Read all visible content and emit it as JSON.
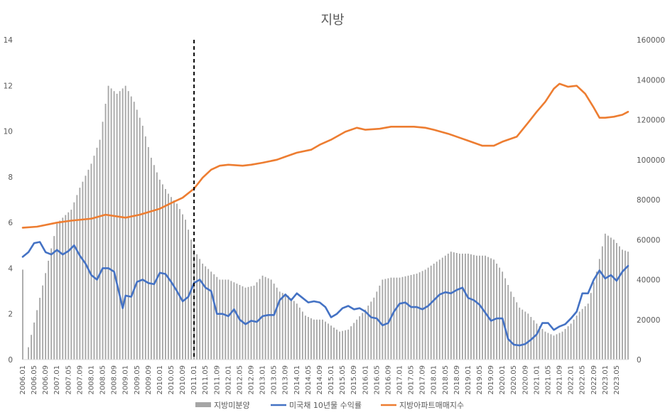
{
  "chart_data": {
    "type": "bar+line",
    "title": "지방",
    "y_left": {
      "range": [
        0,
        14
      ],
      "ticks": [
        0,
        2,
        4,
        6,
        8,
        10,
        12,
        14
      ]
    },
    "y_right": {
      "range": [
        0,
        160000
      ],
      "ticks": [
        0,
        20000,
        40000,
        60000,
        80000,
        100000,
        120000,
        140000,
        160000
      ]
    },
    "x_tick_labels": [
      "2006.01",
      "2006.05",
      "2006.09",
      "2007.01",
      "2007.05",
      "2007.09",
      "2008.01",
      "2008.05",
      "2008.09",
      "2009.01",
      "2009.05",
      "2009.09",
      "2010.01",
      "2010.05",
      "2010.09",
      "2011.01",
      "2011.05",
      "2011.09",
      "2012.01",
      "2012.05",
      "2012.09",
      "2013.01",
      "2013.05",
      "2013.09",
      "2014.01",
      "2014.05",
      "2014.09",
      "2015.01",
      "2015.05",
      "2015.09",
      "2016.01",
      "2016.05",
      "2016.09",
      "2017.01",
      "2017.05",
      "2017.09",
      "2018.01",
      "2018.05",
      "2018.09",
      "2019.01",
      "2019.05",
      "2019.09",
      "2020.01",
      "2020.05",
      "2020.09",
      "2021.01",
      "2021.05",
      "2021.09",
      "2022.01",
      "2022.05",
      "2022.09",
      "2023.01",
      "2023.05"
    ],
    "marker_line": {
      "at": "2011.01",
      "style": "dashed"
    },
    "x_start": "2006.01",
    "x_end": "2023.09",
    "series": [
      {
        "name": "지방미분양",
        "kind": "bar",
        "axis": "right",
        "color": "#a5a5a5",
        "points": [
          [
            "2006.01",
            45000
          ],
          [
            "2006.02",
            0
          ],
          [
            "2007.01",
            68000
          ],
          [
            "2007.03",
            71000
          ],
          [
            "2007.06",
            75000
          ],
          [
            "2007.09",
            86000
          ],
          [
            "2008.01",
            98000
          ],
          [
            "2008.04",
            110000
          ],
          [
            "2008.07",
            137000
          ],
          [
            "2008.10",
            133000
          ],
          [
            "2009.01",
            137000
          ],
          [
            "2009.04",
            129000
          ],
          [
            "2009.07",
            117000
          ],
          [
            "2009.10",
            101000
          ],
          [
            "2010.01",
            90000
          ],
          [
            "2010.04",
            83000
          ],
          [
            "2010.07",
            78000
          ],
          [
            "2010.10",
            70000
          ],
          [
            "2011.01",
            55000
          ],
          [
            "2011.04",
            48000
          ],
          [
            "2011.07",
            44000
          ],
          [
            "2011.10",
            40000
          ],
          [
            "2012.01",
            40000
          ],
          [
            "2012.04",
            38000
          ],
          [
            "2012.07",
            36000
          ],
          [
            "2012.10",
            37000
          ],
          [
            "2013.01",
            42000
          ],
          [
            "2013.04",
            40000
          ],
          [
            "2013.07",
            34000
          ],
          [
            "2013.10",
            32000
          ],
          [
            "2014.01",
            28000
          ],
          [
            "2014.04",
            22000
          ],
          [
            "2014.07",
            20000
          ],
          [
            "2014.10",
            20000
          ],
          [
            "2015.01",
            17000
          ],
          [
            "2015.04",
            14000
          ],
          [
            "2015.07",
            15000
          ],
          [
            "2015.10",
            20000
          ],
          [
            "2016.01",
            25000
          ],
          [
            "2016.04",
            31000
          ],
          [
            "2016.07",
            40000
          ],
          [
            "2016.10",
            41000
          ],
          [
            "2017.01",
            41000
          ],
          [
            "2017.04",
            42000
          ],
          [
            "2017.07",
            43000
          ],
          [
            "2017.10",
            45000
          ],
          [
            "2018.01",
            48000
          ],
          [
            "2018.04",
            51000
          ],
          [
            "2018.07",
            54000
          ],
          [
            "2018.10",
            53000
          ],
          [
            "2019.01",
            53000
          ],
          [
            "2019.04",
            52000
          ],
          [
            "2019.07",
            52000
          ],
          [
            "2019.10",
            50000
          ],
          [
            "2020.01",
            44000
          ],
          [
            "2020.04",
            34000
          ],
          [
            "2020.07",
            26000
          ],
          [
            "2020.10",
            23000
          ],
          [
            "2021.01",
            18000
          ],
          [
            "2021.04",
            14000
          ],
          [
            "2021.07",
            12000
          ],
          [
            "2021.10",
            14000
          ],
          [
            "2022.01",
            18000
          ],
          [
            "2022.04",
            24000
          ],
          [
            "2022.07",
            28000
          ],
          [
            "2022.10",
            44000
          ],
          [
            "2023.01",
            63000
          ],
          [
            "2023.04",
            60000
          ],
          [
            "2023.07",
            55000
          ],
          [
            "2023.09",
            54000
          ]
        ]
      },
      {
        "name": "미국채 10년물 수익률",
        "kind": "line",
        "axis": "left",
        "color": "#4472c4",
        "points": [
          [
            "2006.01",
            4.5
          ],
          [
            "2006.03",
            4.7
          ],
          [
            "2006.05",
            5.1
          ],
          [
            "2006.07",
            5.15
          ],
          [
            "2006.09",
            4.7
          ],
          [
            "2006.11",
            4.6
          ],
          [
            "2007.01",
            4.8
          ],
          [
            "2007.03",
            4.6
          ],
          [
            "2007.05",
            4.75
          ],
          [
            "2007.07",
            5.0
          ],
          [
            "2007.09",
            4.55
          ],
          [
            "2007.11",
            4.2
          ],
          [
            "2008.01",
            3.7
          ],
          [
            "2008.03",
            3.5
          ],
          [
            "2008.05",
            4.0
          ],
          [
            "2008.07",
            4.0
          ],
          [
            "2008.09",
            3.85
          ],
          [
            "2008.11",
            2.8
          ],
          [
            "2008.12",
            2.25
          ],
          [
            "2009.01",
            2.8
          ],
          [
            "2009.03",
            2.75
          ],
          [
            "2009.05",
            3.4
          ],
          [
            "2009.07",
            3.5
          ],
          [
            "2009.09",
            3.35
          ],
          [
            "2009.11",
            3.3
          ],
          [
            "2010.01",
            3.8
          ],
          [
            "2010.03",
            3.75
          ],
          [
            "2010.05",
            3.4
          ],
          [
            "2010.07",
            3.0
          ],
          [
            "2010.09",
            2.55
          ],
          [
            "2010.11",
            2.75
          ],
          [
            "2011.01",
            3.35
          ],
          [
            "2011.03",
            3.5
          ],
          [
            "2011.05",
            3.15
          ],
          [
            "2011.07",
            3.0
          ],
          [
            "2011.09",
            2.0
          ],
          [
            "2011.11",
            2.0
          ],
          [
            "2012.01",
            1.9
          ],
          [
            "2012.03",
            2.2
          ],
          [
            "2012.05",
            1.75
          ],
          [
            "2012.07",
            1.55
          ],
          [
            "2012.09",
            1.7
          ],
          [
            "2012.11",
            1.65
          ],
          [
            "2013.01",
            1.9
          ],
          [
            "2013.03",
            1.95
          ],
          [
            "2013.05",
            1.95
          ],
          [
            "2013.07",
            2.6
          ],
          [
            "2013.09",
            2.85
          ],
          [
            "2013.11",
            2.6
          ],
          [
            "2014.01",
            2.9
          ],
          [
            "2014.03",
            2.7
          ],
          [
            "2014.05",
            2.5
          ],
          [
            "2014.07",
            2.55
          ],
          [
            "2014.09",
            2.5
          ],
          [
            "2014.11",
            2.3
          ],
          [
            "2015.01",
            1.85
          ],
          [
            "2015.03",
            2.0
          ],
          [
            "2015.05",
            2.25
          ],
          [
            "2015.07",
            2.35
          ],
          [
            "2015.09",
            2.2
          ],
          [
            "2015.11",
            2.25
          ],
          [
            "2016.01",
            2.1
          ],
          [
            "2016.03",
            1.85
          ],
          [
            "2016.05",
            1.8
          ],
          [
            "2016.07",
            1.5
          ],
          [
            "2016.09",
            1.6
          ],
          [
            "2016.11",
            2.1
          ],
          [
            "2017.01",
            2.45
          ],
          [
            "2017.03",
            2.5
          ],
          [
            "2017.05",
            2.3
          ],
          [
            "2017.07",
            2.3
          ],
          [
            "2017.09",
            2.2
          ],
          [
            "2017.11",
            2.35
          ],
          [
            "2018.01",
            2.6
          ],
          [
            "2018.03",
            2.85
          ],
          [
            "2018.05",
            2.95
          ],
          [
            "2018.07",
            2.9
          ],
          [
            "2018.09",
            3.05
          ],
          [
            "2018.11",
            3.15
          ],
          [
            "2019.01",
            2.7
          ],
          [
            "2019.03",
            2.6
          ],
          [
            "2019.05",
            2.4
          ],
          [
            "2019.07",
            2.05
          ],
          [
            "2019.09",
            1.7
          ],
          [
            "2019.11",
            1.8
          ],
          [
            "2020.01",
            1.8
          ],
          [
            "2020.03",
            0.9
          ],
          [
            "2020.05",
            0.65
          ],
          [
            "2020.07",
            0.62
          ],
          [
            "2020.09",
            0.68
          ],
          [
            "2020.11",
            0.87
          ],
          [
            "2021.01",
            1.1
          ],
          [
            "2021.03",
            1.6
          ],
          [
            "2021.05",
            1.6
          ],
          [
            "2021.07",
            1.3
          ],
          [
            "2021.09",
            1.45
          ],
          [
            "2021.11",
            1.55
          ],
          [
            "2022.01",
            1.8
          ],
          [
            "2022.03",
            2.1
          ],
          [
            "2022.05",
            2.9
          ],
          [
            "2022.07",
            2.9
          ],
          [
            "2022.09",
            3.5
          ],
          [
            "2022.11",
            3.9
          ],
          [
            "2023.01",
            3.55
          ],
          [
            "2023.03",
            3.7
          ],
          [
            "2023.05",
            3.45
          ],
          [
            "2023.07",
            3.85
          ],
          [
            "2023.09",
            4.1
          ]
        ]
      },
      {
        "name": "지방아파트매매지수",
        "kind": "line",
        "axis": "right",
        "color": "#ed7d31",
        "points": [
          [
            "2006.01",
            66000
          ],
          [
            "2006.06",
            66500
          ],
          [
            "2007.01",
            68500
          ],
          [
            "2007.06",
            69500
          ],
          [
            "2008.01",
            70500
          ],
          [
            "2008.06",
            72500
          ],
          [
            "2009.01",
            71000
          ],
          [
            "2009.06",
            72500
          ],
          [
            "2010.01",
            75500
          ],
          [
            "2010.06",
            79000
          ],
          [
            "2010.09",
            81000
          ],
          [
            "2011.01",
            85500
          ],
          [
            "2011.04",
            91000
          ],
          [
            "2011.07",
            95000
          ],
          [
            "2011.10",
            97000
          ],
          [
            "2012.01",
            97500
          ],
          [
            "2012.06",
            97000
          ],
          [
            "2012.09",
            97500
          ],
          [
            "2013.01",
            98500
          ],
          [
            "2013.06",
            100000
          ],
          [
            "2013.09",
            101500
          ],
          [
            "2014.01",
            103500
          ],
          [
            "2014.06",
            105000
          ],
          [
            "2014.09",
            107500
          ],
          [
            "2015.01",
            110000
          ],
          [
            "2015.06",
            114000
          ],
          [
            "2015.10",
            116000
          ],
          [
            "2016.01",
            115000
          ],
          [
            "2016.06",
            115500
          ],
          [
            "2016.10",
            116500
          ],
          [
            "2017.01",
            116500
          ],
          [
            "2017.06",
            116500
          ],
          [
            "2017.10",
            116000
          ],
          [
            "2018.01",
            115000
          ],
          [
            "2018.06",
            113000
          ],
          [
            "2018.10",
            111000
          ],
          [
            "2019.01",
            109500
          ],
          [
            "2019.06",
            107000
          ],
          [
            "2019.10",
            107000
          ],
          [
            "2020.01",
            109000
          ],
          [
            "2020.06",
            111500
          ],
          [
            "2020.10",
            118500
          ],
          [
            "2021.01",
            124000
          ],
          [
            "2021.04",
            129000
          ],
          [
            "2021.07",
            135500
          ],
          [
            "2021.09",
            138000
          ],
          [
            "2021.12",
            136500
          ],
          [
            "2022.03",
            137000
          ],
          [
            "2022.06",
            133000
          ],
          [
            "2022.09",
            126000
          ],
          [
            "2022.11",
            121000
          ],
          [
            "2023.01",
            121000
          ],
          [
            "2023.04",
            121500
          ],
          [
            "2023.07",
            122500
          ],
          [
            "2023.09",
            124000
          ]
        ]
      }
    ],
    "legend": {
      "position": "bottom"
    },
    "grid": false
  }
}
